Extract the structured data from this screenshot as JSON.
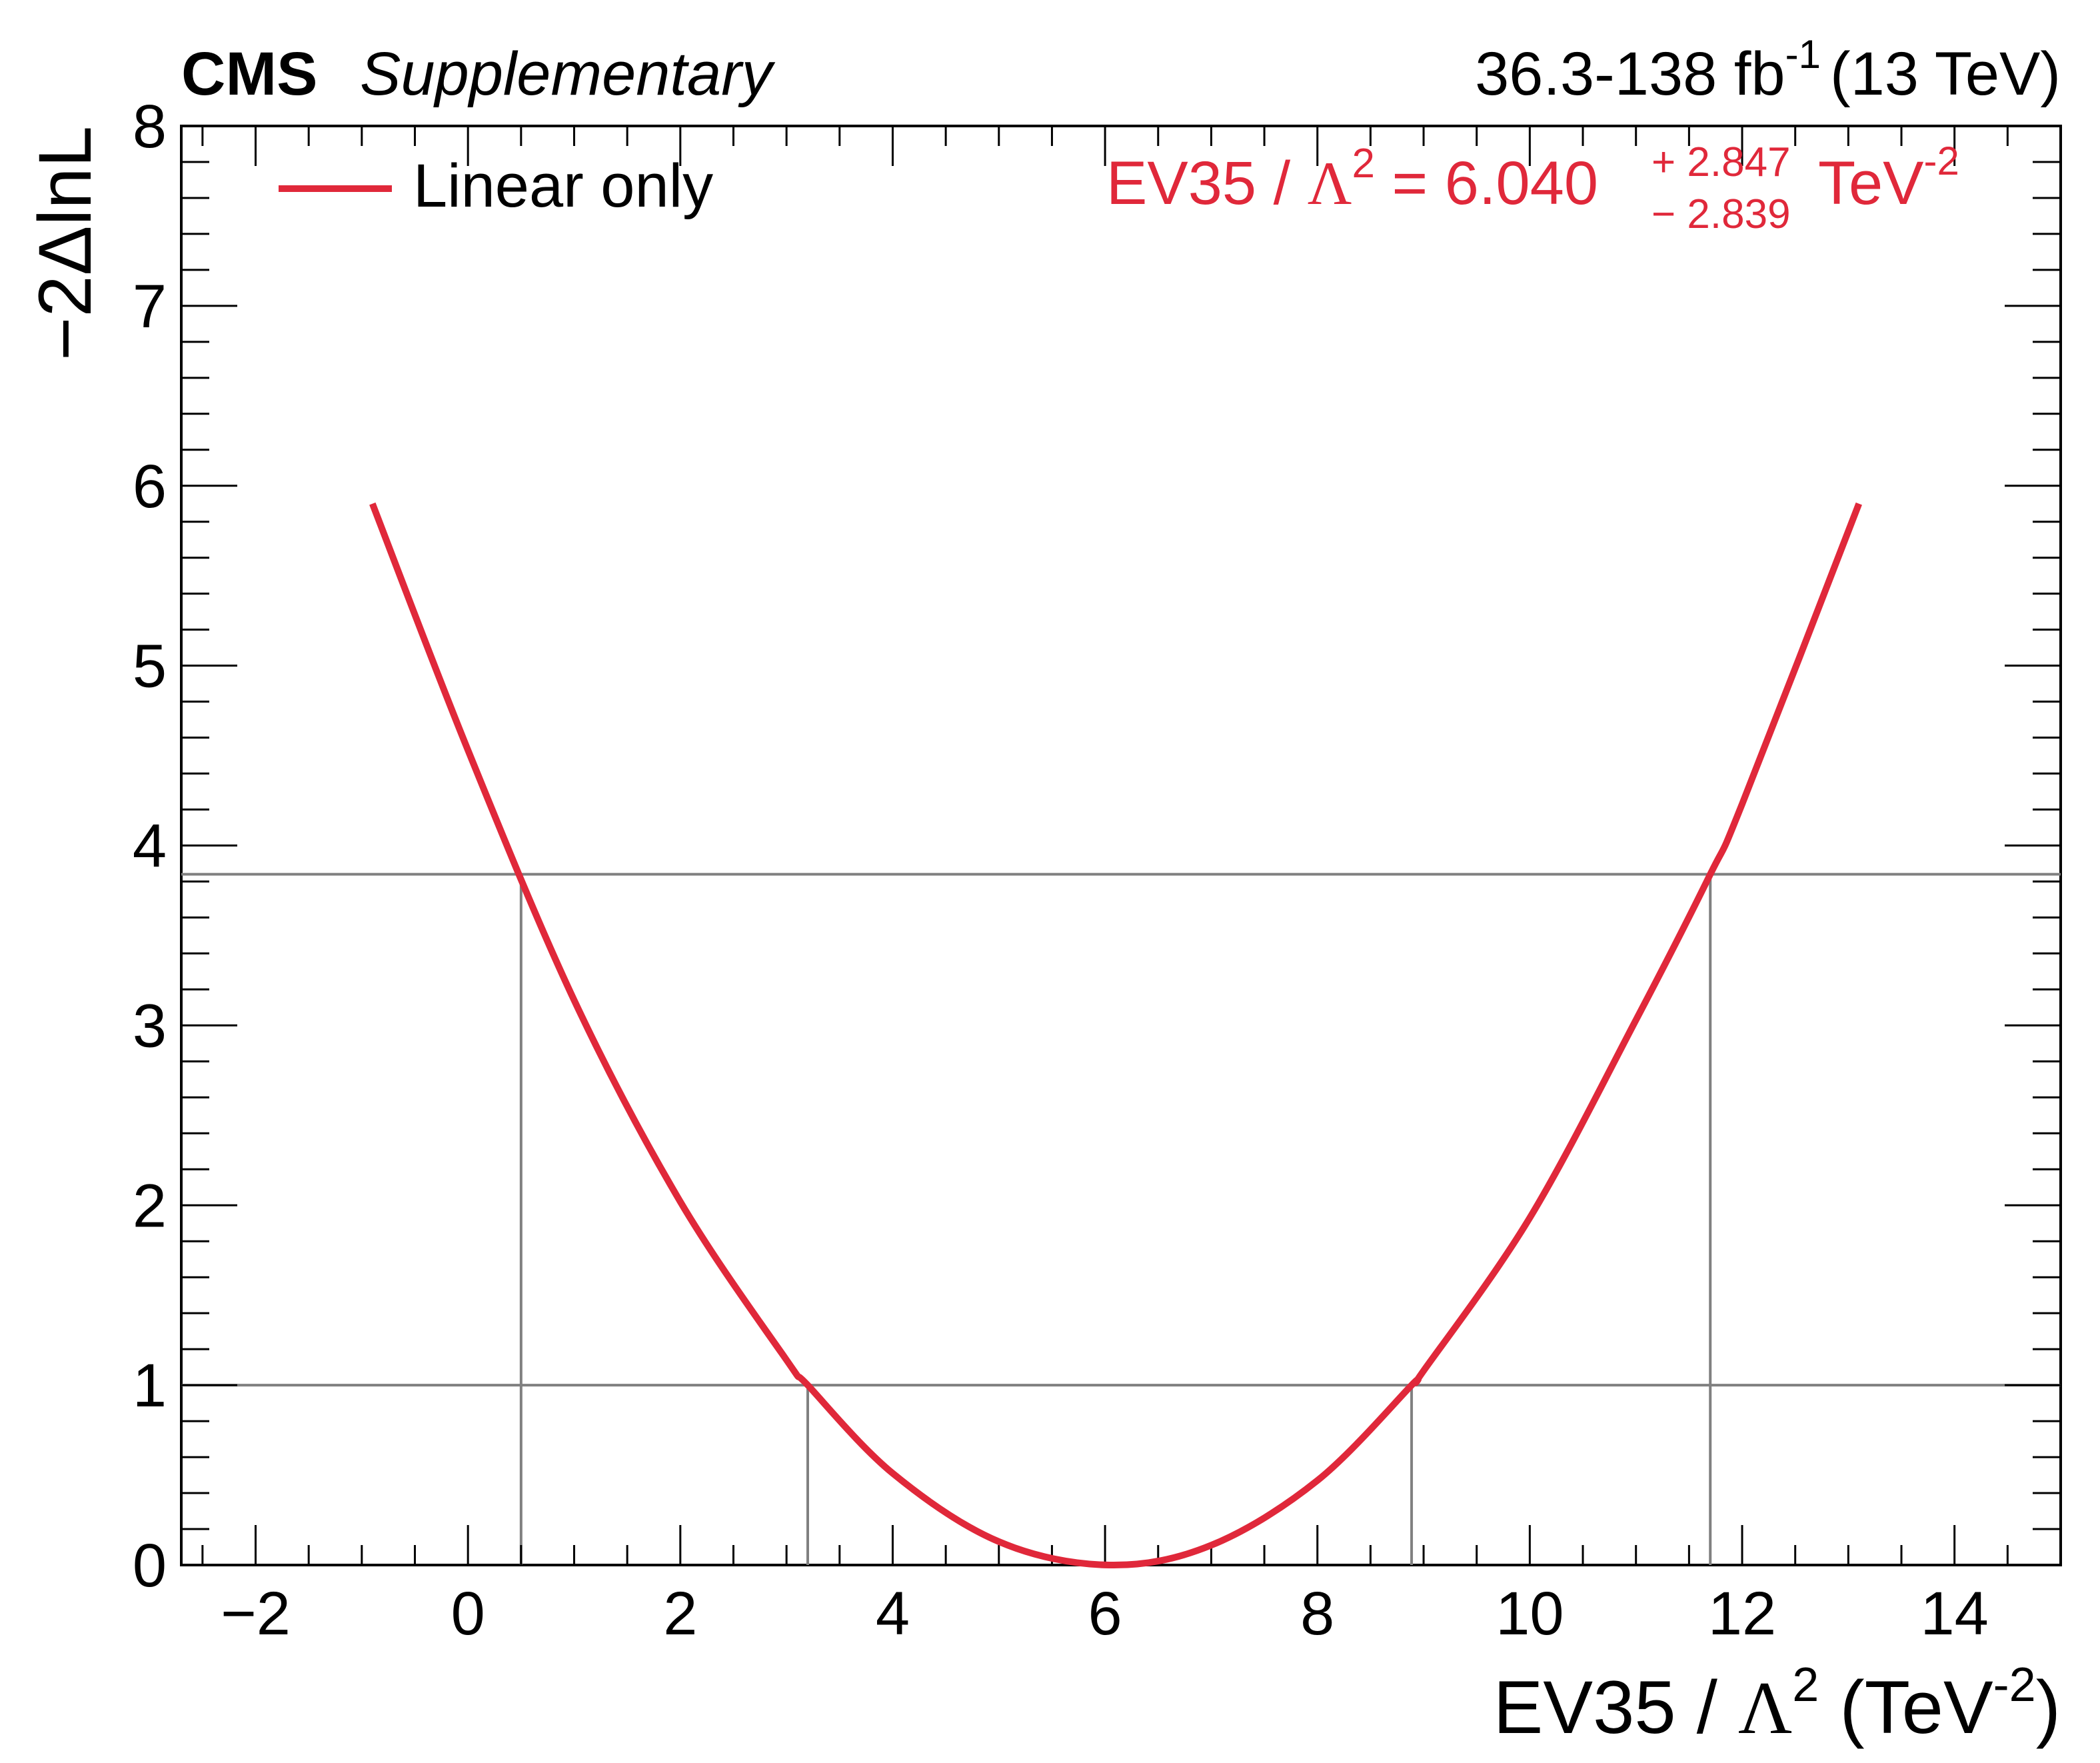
{
  "header": {
    "experiment": "CMS",
    "status": "Supplementary",
    "lumi_value": "36.3-138 fb",
    "lumi_exp": "-1",
    "energy": "(13 TeV)"
  },
  "legend": {
    "label": "Linear only",
    "position": "top-left"
  },
  "result": {
    "param": "EV35 / ",
    "lambda": "Λ",
    "power": "2",
    "equals": " = 6.040",
    "up": "+ 2.847",
    "down": "− 2.839",
    "unit": "TeV",
    "unit_exp": "-2"
  },
  "axes": {
    "xlabel_main": "EV35 / ",
    "xlabel_lambda": "Λ",
    "xlabel_power": "2",
    "xlabel_unit": " (TeV",
    "xlabel_unit_exp": "-2",
    "xlabel_close": ")",
    "ylabel": "−2ΔlnL",
    "xticks": [
      "−2",
      "0",
      "2",
      "4",
      "6",
      "8",
      "10",
      "12",
      "14"
    ],
    "yticks": [
      "0",
      "1",
      "2",
      "3",
      "4",
      "5",
      "6",
      "7",
      "8"
    ]
  },
  "colors": {
    "curve": "#e0283a",
    "reference_lines": "#808080",
    "text": "#000000"
  },
  "chart_data": {
    "type": "line",
    "xlim": [
      -2.7,
      15.0
    ],
    "ylim": [
      0,
      8
    ],
    "grid": false,
    "series": [
      {
        "name": "Linear only",
        "x": [
          -0.9,
          0.0,
          1.0,
          2.0,
          3.0,
          3.2,
          4.0,
          5.0,
          6.04,
          7.0,
          8.0,
          8.887,
          9.0,
          10.0,
          11.0,
          11.7,
          12.0,
          13.1
        ],
        "y": [
          5.9,
          4.53,
          3.14,
          2.02,
          1.14,
          1.0,
          0.51,
          0.13,
          0.0,
          0.11,
          0.47,
          1.0,
          1.08,
          1.93,
          3.03,
          3.84,
          4.23,
          5.9
        ]
      }
    ],
    "best_fit": 6.04,
    "uncertainty_up": 2.847,
    "uncertainty_down": 2.839,
    "reference_lines": {
      "horizontal": [
        1.0,
        3.84
      ],
      "vertical_68cl": [
        3.2,
        8.887
      ],
      "vertical_95cl": [
        0.5,
        11.7
      ]
    }
  }
}
